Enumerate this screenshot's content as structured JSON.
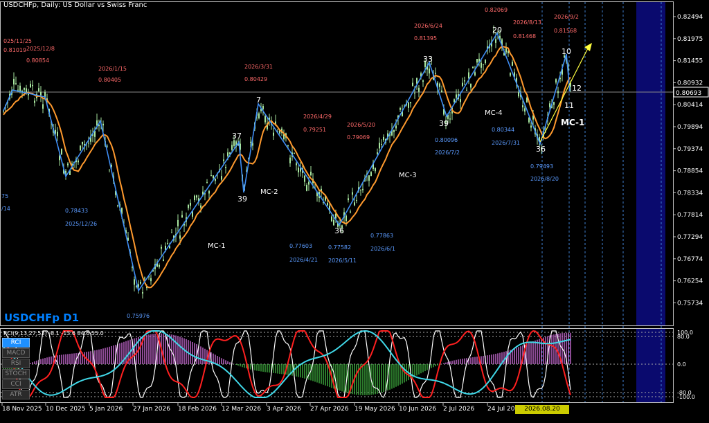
{
  "header": {
    "title": "USDCHFp, Daily:  US Dollar vs Swiss Franc"
  },
  "symbol_label": "USDCHFp D1",
  "current_price": "0.80693",
  "price_axis": [
    "0.82494",
    "0.81975",
    "0.81455",
    "0.80932",
    "0.80414",
    "0.79894",
    "0.79374",
    "0.78854",
    "0.78334",
    "0.77814",
    "0.77294",
    "0.76774",
    "0.76254",
    "0.75734"
  ],
  "time_axis": [
    "18 Nov 2025",
    "10 Dec 2025",
    "5 Jan 2026",
    "27 Jan 2026",
    "18 Feb 2026",
    "12 Mar 2026",
    "3 Apr 2026",
    "27 Apr 2026",
    "19 May 2026",
    "10 Jun 2026",
    "2 Jul 2026",
    "24 Jul 2026"
  ],
  "date_badge": "2026.08.20 00:00",
  "annotations": {
    "high_labels": [
      {
        "date": "025/11/25",
        "price": "0.81019"
      },
      {
        "date": "2025/12/8",
        "price": "0.80854"
      },
      {
        "date": "2026/1/15",
        "price": "0.80405"
      },
      {
        "date": "2026/3/31",
        "price": "0.80429"
      },
      {
        "date": "2026/4/29",
        "price": "0.79251"
      },
      {
        "date": "2026/5/20",
        "price": "0.79069"
      },
      {
        "date": "2026/6/24",
        "price": "0.81395"
      },
      {
        "date": "0.82069",
        "price": ""
      },
      {
        "date": "2026/8/13",
        "price": "0.81468"
      },
      {
        "date": "2026/9/2",
        "price": "0.81568"
      }
    ],
    "low_labels": [
      {
        "price": "75",
        "date": "/14"
      },
      {
        "price": "0.78433",
        "date": "2025/12/26"
      },
      {
        "price": "0.75976",
        "date": ""
      },
      {
        "price": "0.77603",
        "date": "2026/4/21"
      },
      {
        "price": "0.77582",
        "date": "2026/5/11"
      },
      {
        "price": "0.77863",
        "date": "2026/6/1"
      },
      {
        "price": "0.80096",
        "date": "2026/7/2"
      },
      {
        "price": "0.80344",
        "date": "2026/7/31"
      },
      {
        "price": "0.79493",
        "date": "2026/8/20"
      }
    ],
    "wave_counts": [
      "37",
      "39",
      "7",
      "36",
      "33",
      "39",
      "20",
      "36",
      "10",
      "11",
      "12"
    ],
    "mc_labels": [
      "MC-1",
      "MC-2",
      "MC-3",
      "MC-4",
      "MC-1"
    ]
  },
  "indicator": {
    "header": "RCI(9,13,27,53) -8.1 -13.6 84.6 55.0",
    "levels": [
      "100.0",
      "80.0",
      "0.0",
      "-80.0",
      "-100.0"
    ],
    "tabs": [
      "RCI",
      "MACD",
      "RSI",
      "STOCH",
      "CCI",
      "ATR"
    ],
    "active_tab": "RCI"
  },
  "colors": {
    "background": "#000000",
    "candle": "#a8e6a0",
    "ma": "#ff9a2e",
    "zigzag": "#3f8ef5",
    "high_label": "#ff6a6a",
    "low_label": "#5b9bff",
    "hist_pos": "#c86bd4",
    "hist_neg": "#3fae3f",
    "rci_fast": "#ffffff",
    "rci_mid": "#ff2020",
    "rci_slow": "#40d8e8",
    "future_zone": "#0a0a6e",
    "trend_arrow": "#ffff40"
  }
}
